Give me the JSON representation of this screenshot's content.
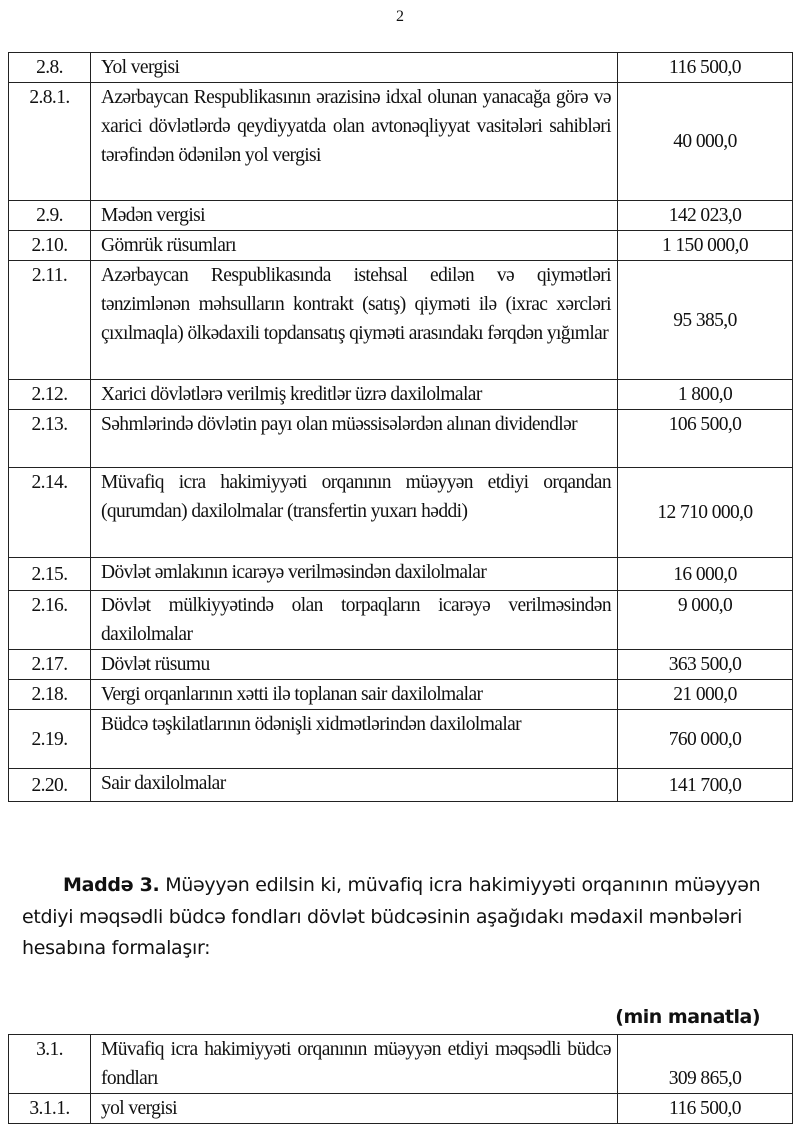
{
  "page_number": "2",
  "table1": {
    "rows": [
      {
        "num": "2.8.",
        "desc": "Yol vergisi",
        "amount": "116 500,0",
        "h": 28,
        "nv": "m",
        "av": "m"
      },
      {
        "num": "2.8.1.",
        "desc": "Azərbaycan Respublikasının ərazisinə idxal olunan yanacağa görə və xarici dövlətlərdə qeydiyyatda olan avtonəqliyyat vasitələri sahibləri tərəfindən ödənilən yol vergisi",
        "amount": "40 000,0",
        "h": 118,
        "nv": "t",
        "av": "m"
      },
      {
        "num": "2.9.",
        "desc": "Mədən vergisi",
        "amount": "142 023,0",
        "h": 30,
        "nv": "m",
        "av": "m"
      },
      {
        "num": "2.10.",
        "desc": "Gömrük rüsumları",
        "amount": "1 150 000,0",
        "h": 30,
        "nv": "m",
        "av": "m"
      },
      {
        "num": "2.11.",
        "desc": "Azərbaycan Respublikasında istehsal edilən və qiymətləri tənzimlənən məhsulların kontrakt (satış) qiyməti ilə (ixrac xərcləri çıxılmaqla) ölkədaxili topdansatış qiyməti arasındakı fərqdən yığımlar",
        "amount": "95 385,0",
        "h": 119,
        "nv": "t",
        "av": "m"
      },
      {
        "num": "2.12.",
        "desc": "Xarici dövlətlərə verilmiş  kreditlər üzrə daxilolmalar",
        "amount": "1 800,0",
        "h": 28,
        "nv": "m",
        "av": "m"
      },
      {
        "num": "2.13.",
        "desc": "Səhmlərində dövlətin payı olan müəssisələrdən alınan dividendlər",
        "amount": "106 500,0",
        "h": 58,
        "nv": "t",
        "av": "t"
      },
      {
        "num": "2.14.",
        "desc": "Müvafiq icra hakimiyyəti orqanının müəyyən etdiyi orqandan (qurumdan) daxilolmalar (transfertin yuxarı həddi)",
        "amount": "12 710 000,0",
        "h": 90,
        "nv": "t",
        "av": "m"
      },
      {
        "num": "2.15.",
        "desc": "Dövlət əmlakının icarəyə verilməsindən  daxilolmalar",
        "amount": "16 000,0",
        "h": 33,
        "nv": "m",
        "av": "m"
      },
      {
        "num": "2.16.",
        "desc": "Dövlət mülkiyyətində olan torpaqların icarəyə verilməsindən  daxilolmalar",
        "amount": "9 000,0",
        "h": 59,
        "nv": "t",
        "av": "t"
      },
      {
        "num": "2.17.",
        "desc": "Dövlət rüsumu",
        "amount": "363 500,0",
        "h": 29,
        "nv": "m",
        "av": "m"
      },
      {
        "num": "2.18.",
        "desc": "Vergi orqanlarının xətti ilə toplanan sair daxilolmalar",
        "amount": "21 000,0",
        "h": 29,
        "nv": "m",
        "av": "m"
      },
      {
        "num": "2.19.",
        "desc": "Büdcə təşkilatlarının ödənişli xidmətlərindən daxilolmalar",
        "amount": "760 000,0",
        "h": 59,
        "nv": "m",
        "av": "m"
      },
      {
        "num": "2.20.",
        "desc": "Sair daxilolmalar",
        "amount": "141 700,0",
        "h": 33,
        "nv": "m",
        "av": "m"
      }
    ]
  },
  "article": {
    "lead": "Maddə 3.",
    "text": " Müəyyən edilsin ki, müvafiq icra hakimiyyəti orqanının müəyyən etdiyi məqsədli büdcə fondları dövlət büdcəsinin aşağıdakı mədaxil mənbələri hesabına formalaşır:"
  },
  "unit_label": "(min manatla)",
  "table2": {
    "rows": [
      {
        "num": "3.1.",
        "desc": "Müvafiq icra hakimiyyəti orqanının müəyyən etdiyi məqsədli büdcə fondları",
        "amount": "309 865,0",
        "h": 59,
        "nv": "t",
        "av": "b"
      },
      {
        "num": "3.1.1.",
        "desc": "yol vergisi",
        "amount": "116 500,0",
        "h": 28,
        "nv": "m",
        "av": "m"
      }
    ]
  }
}
